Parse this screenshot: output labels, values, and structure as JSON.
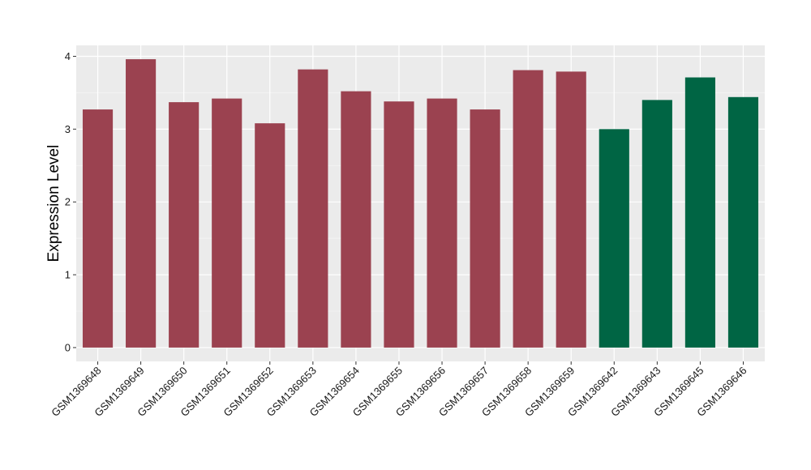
{
  "chart_data": {
    "type": "bar",
    "title": "",
    "xlabel": "",
    "ylabel": "Expression Level",
    "ylim": [
      -0.19,
      4.15
    ],
    "yticks": [
      0,
      1,
      2,
      3,
      4
    ],
    "grid": true,
    "legend": "none",
    "categories": [
      "GSM1369648",
      "GSM1369649",
      "GSM1369650",
      "GSM1369651",
      "GSM1369652",
      "GSM1369653",
      "GSM1369654",
      "GSM1369655",
      "GSM1369656",
      "GSM1369657",
      "GSM1369658",
      "GSM1369659",
      "GSM1369642",
      "GSM1369643",
      "GSM1369645",
      "GSM1369646"
    ],
    "values": [
      3.27,
      3.96,
      3.37,
      3.42,
      3.08,
      3.82,
      3.52,
      3.38,
      3.42,
      3.27,
      3.81,
      3.79,
      3.0,
      3.4,
      3.71,
      3.44
    ],
    "bar_colors": [
      "#9b4250",
      "#9b4250",
      "#9b4250",
      "#9b4250",
      "#9b4250",
      "#9b4250",
      "#9b4250",
      "#9b4250",
      "#9b4250",
      "#9b4250",
      "#9b4250",
      "#9b4250",
      "#006544",
      "#006544",
      "#006544",
      "#006544"
    ]
  },
  "colors": {
    "panel_background": "#ebebeb",
    "grid_major": "#ffffff",
    "grid_minor": "#f5f5f5"
  }
}
